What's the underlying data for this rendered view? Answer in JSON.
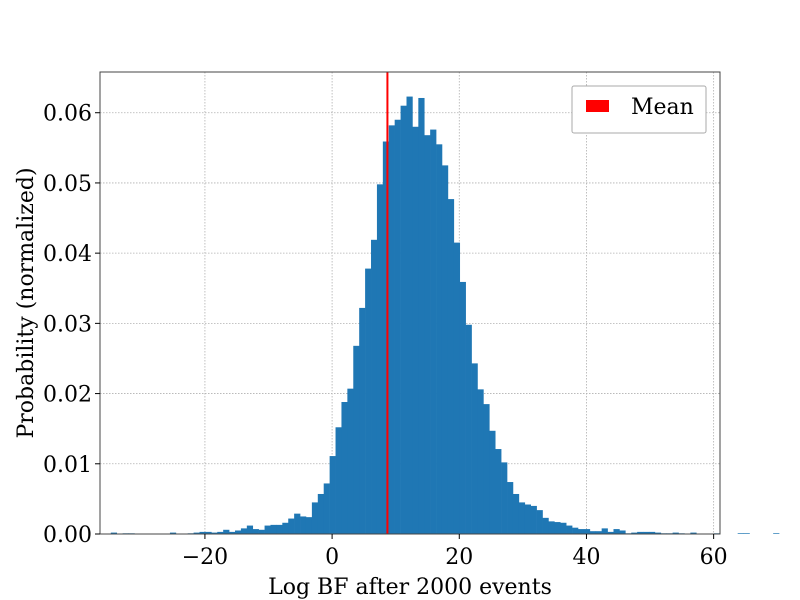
{
  "chart_data": {
    "type": "bar",
    "subtype": "histogram",
    "xlabel": "Log BF after 2000 events",
    "ylabel": "Probability (normalized)",
    "xlim": [
      -36.5,
      61
    ],
    "ylim": [
      0,
      0.0658
    ],
    "xticks": [
      -20,
      0,
      20,
      40,
      60
    ],
    "xtick_labels": [
      "−20",
      "0",
      "20",
      "40",
      "60"
    ],
    "yticks": [
      0,
      0.01,
      0.02,
      0.03,
      0.04,
      0.05,
      0.06
    ],
    "ytick_labels": [
      "0.00",
      "0.01",
      "0.02",
      "0.03",
      "0.04",
      "0.05",
      "0.06"
    ],
    "grid": true,
    "bin_width": 0.93,
    "bin_start": -34.8,
    "values": [
      0.0002,
      0,
      0.0001,
      0.0001,
      0,
      0,
      0,
      0,
      0,
      0,
      0.0002,
      0,
      0,
      0.0001,
      0.0002,
      0.0003,
      0.0003,
      0.0002,
      0.0003,
      0.0006,
      0.0003,
      0.0005,
      0.0008,
      0.0012,
      0.0007,
      0.0006,
      0.0012,
      0.0013,
      0.0013,
      0.0016,
      0.0022,
      0.0029,
      0.0025,
      0.0024,
      0.0045,
      0.0057,
      0.0072,
      0.0111,
      0.0152,
      0.0188,
      0.0207,
      0.0268,
      0.0322,
      0.0378,
      0.0419,
      0.0498,
      0.0559,
      0.0582,
      0.059,
      0.061,
      0.0623,
      0.058,
      0.0621,
      0.0568,
      0.0576,
      0.0555,
      0.0525,
      0.0477,
      0.0415,
      0.0359,
      0.0298,
      0.0243,
      0.0206,
      0.0185,
      0.0147,
      0.0121,
      0.0102,
      0.0074,
      0.0057,
      0.0045,
      0.0042,
      0.004,
      0.0034,
      0.0023,
      0.0018,
      0.0017,
      0.0016,
      0.0012,
      0.0009,
      0.0007,
      0.0007,
      0.0004,
      0.0004,
      0.0008,
      0.0003,
      0.0007,
      0.0005,
      0.0001,
      0.0002,
      0.0003,
      0.0003,
      0.0003,
      0.0002,
      0.0001,
      0.0001,
      0.0002,
      0.0001,
      0,
      0.0002,
      0,
      0,
      0,
      0.0001,
      0,
      0,
      0,
      0.0001,
      0.0001,
      0,
      0,
      0,
      0,
      0.0001
    ],
    "bar_color": "#1f77b4",
    "mean": 8.7,
    "mean_color": "#ff0000",
    "legend": {
      "position": "top-right",
      "entries": [
        {
          "label": "Mean",
          "color": "#ff0000"
        }
      ]
    }
  }
}
